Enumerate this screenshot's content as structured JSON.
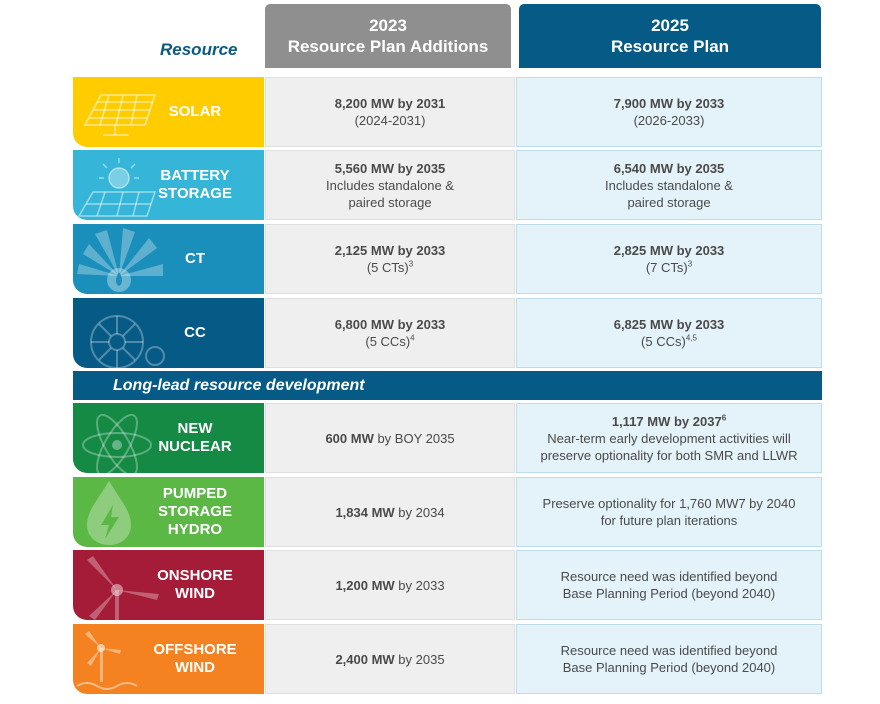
{
  "header": {
    "resource_label": "Resource",
    "col2023_year": "2023",
    "col2023_title": "Resource Plan Additions",
    "col2025_year": "2025",
    "col2025_title": "Resource Plan"
  },
  "rows": [
    {
      "label": "SOLAR",
      "icon": "solar-panel-icon",
      "color": "#ffcc00",
      "c23_main": "8,200 MW by 2031",
      "c23_sub": "(2024-2031)",
      "c25_main": "7,900 MW by 2033",
      "c25_sub": "(2026-2033)"
    },
    {
      "label_1": "BATTERY",
      "label_2": "STORAGE",
      "icon": "sun-battery-icon",
      "color": "#35b6d8",
      "c23_main": "5,560 MW by 2035",
      "c23_sub_1": "Includes standalone &",
      "c23_sub_2": "paired storage",
      "c25_main": "6,540 MW by 2035",
      "c25_sub_1": "Includes standalone &",
      "c25_sub_2": "paired storage"
    },
    {
      "label": "CT",
      "icon": "turbine-flame-icon",
      "color": "#1b8fbb",
      "c23_main": "2,125 MW by 2033",
      "c23_sub": "(5 CTs)",
      "c23_sup": "3",
      "c25_main": "2,825 MW by 2033",
      "c25_sub": "(7 CTs)",
      "c25_sup": "3"
    },
    {
      "label": "CC",
      "icon": "turbine-icon",
      "color": "#065a86",
      "c23_main": "6,800 MW by 2033",
      "c23_sub": "(5 CCs)",
      "c23_sup": "4",
      "c25_main": "6,825 MW by 2033",
      "c25_sub": "(5 CCs)",
      "c25_sup": "4,5"
    }
  ],
  "banner": "Long-lead resource development",
  "long_rows": [
    {
      "label_1": "NEW",
      "label_2": "NUCLEAR",
      "icon": "atom-icon",
      "color": "#158a45",
      "c23_bold": "600 MW",
      "c23_rest": " by BOY 2035",
      "c25_main": "1,117 MW by 2037",
      "c25_sup": "6",
      "c25_sub_1": "Near-term early development activities will",
      "c25_sub_2": "preserve optionality for both SMR and LLWR"
    },
    {
      "label_1": "PUMPED",
      "label_2": "STORAGE",
      "label_3": "HYDRO",
      "icon": "water-drop-bolt-icon",
      "color": "#5cb845",
      "c23_bold": "1,834 MW",
      "c23_rest": " by 2034",
      "c25_sub_1": "Preserve optionality for 1,760 MW7 by 2040",
      "c25_sub_2": "for future plan iterations"
    },
    {
      "label_1": "ONSHORE",
      "label_2": "WIND",
      "icon": "wind-turbine-icon",
      "color": "#a51c38",
      "c23_bold": "1,200 MW",
      "c23_rest": " by 2033",
      "c25_sub_1": "Resource need was identified beyond",
      "c25_sub_2": "Base Planning Period (beyond 2040)"
    },
    {
      "label_1": "OFFSHORE",
      "label_2": "WIND",
      "icon": "offshore-wind-icon",
      "color": "#f58220",
      "c23_bold": "2,400 MW",
      "c23_rest": " by 2035",
      "c25_sub_1": "Resource need was identified beyond",
      "c25_sub_2": "Base Planning Period (beyond 2040)"
    }
  ]
}
